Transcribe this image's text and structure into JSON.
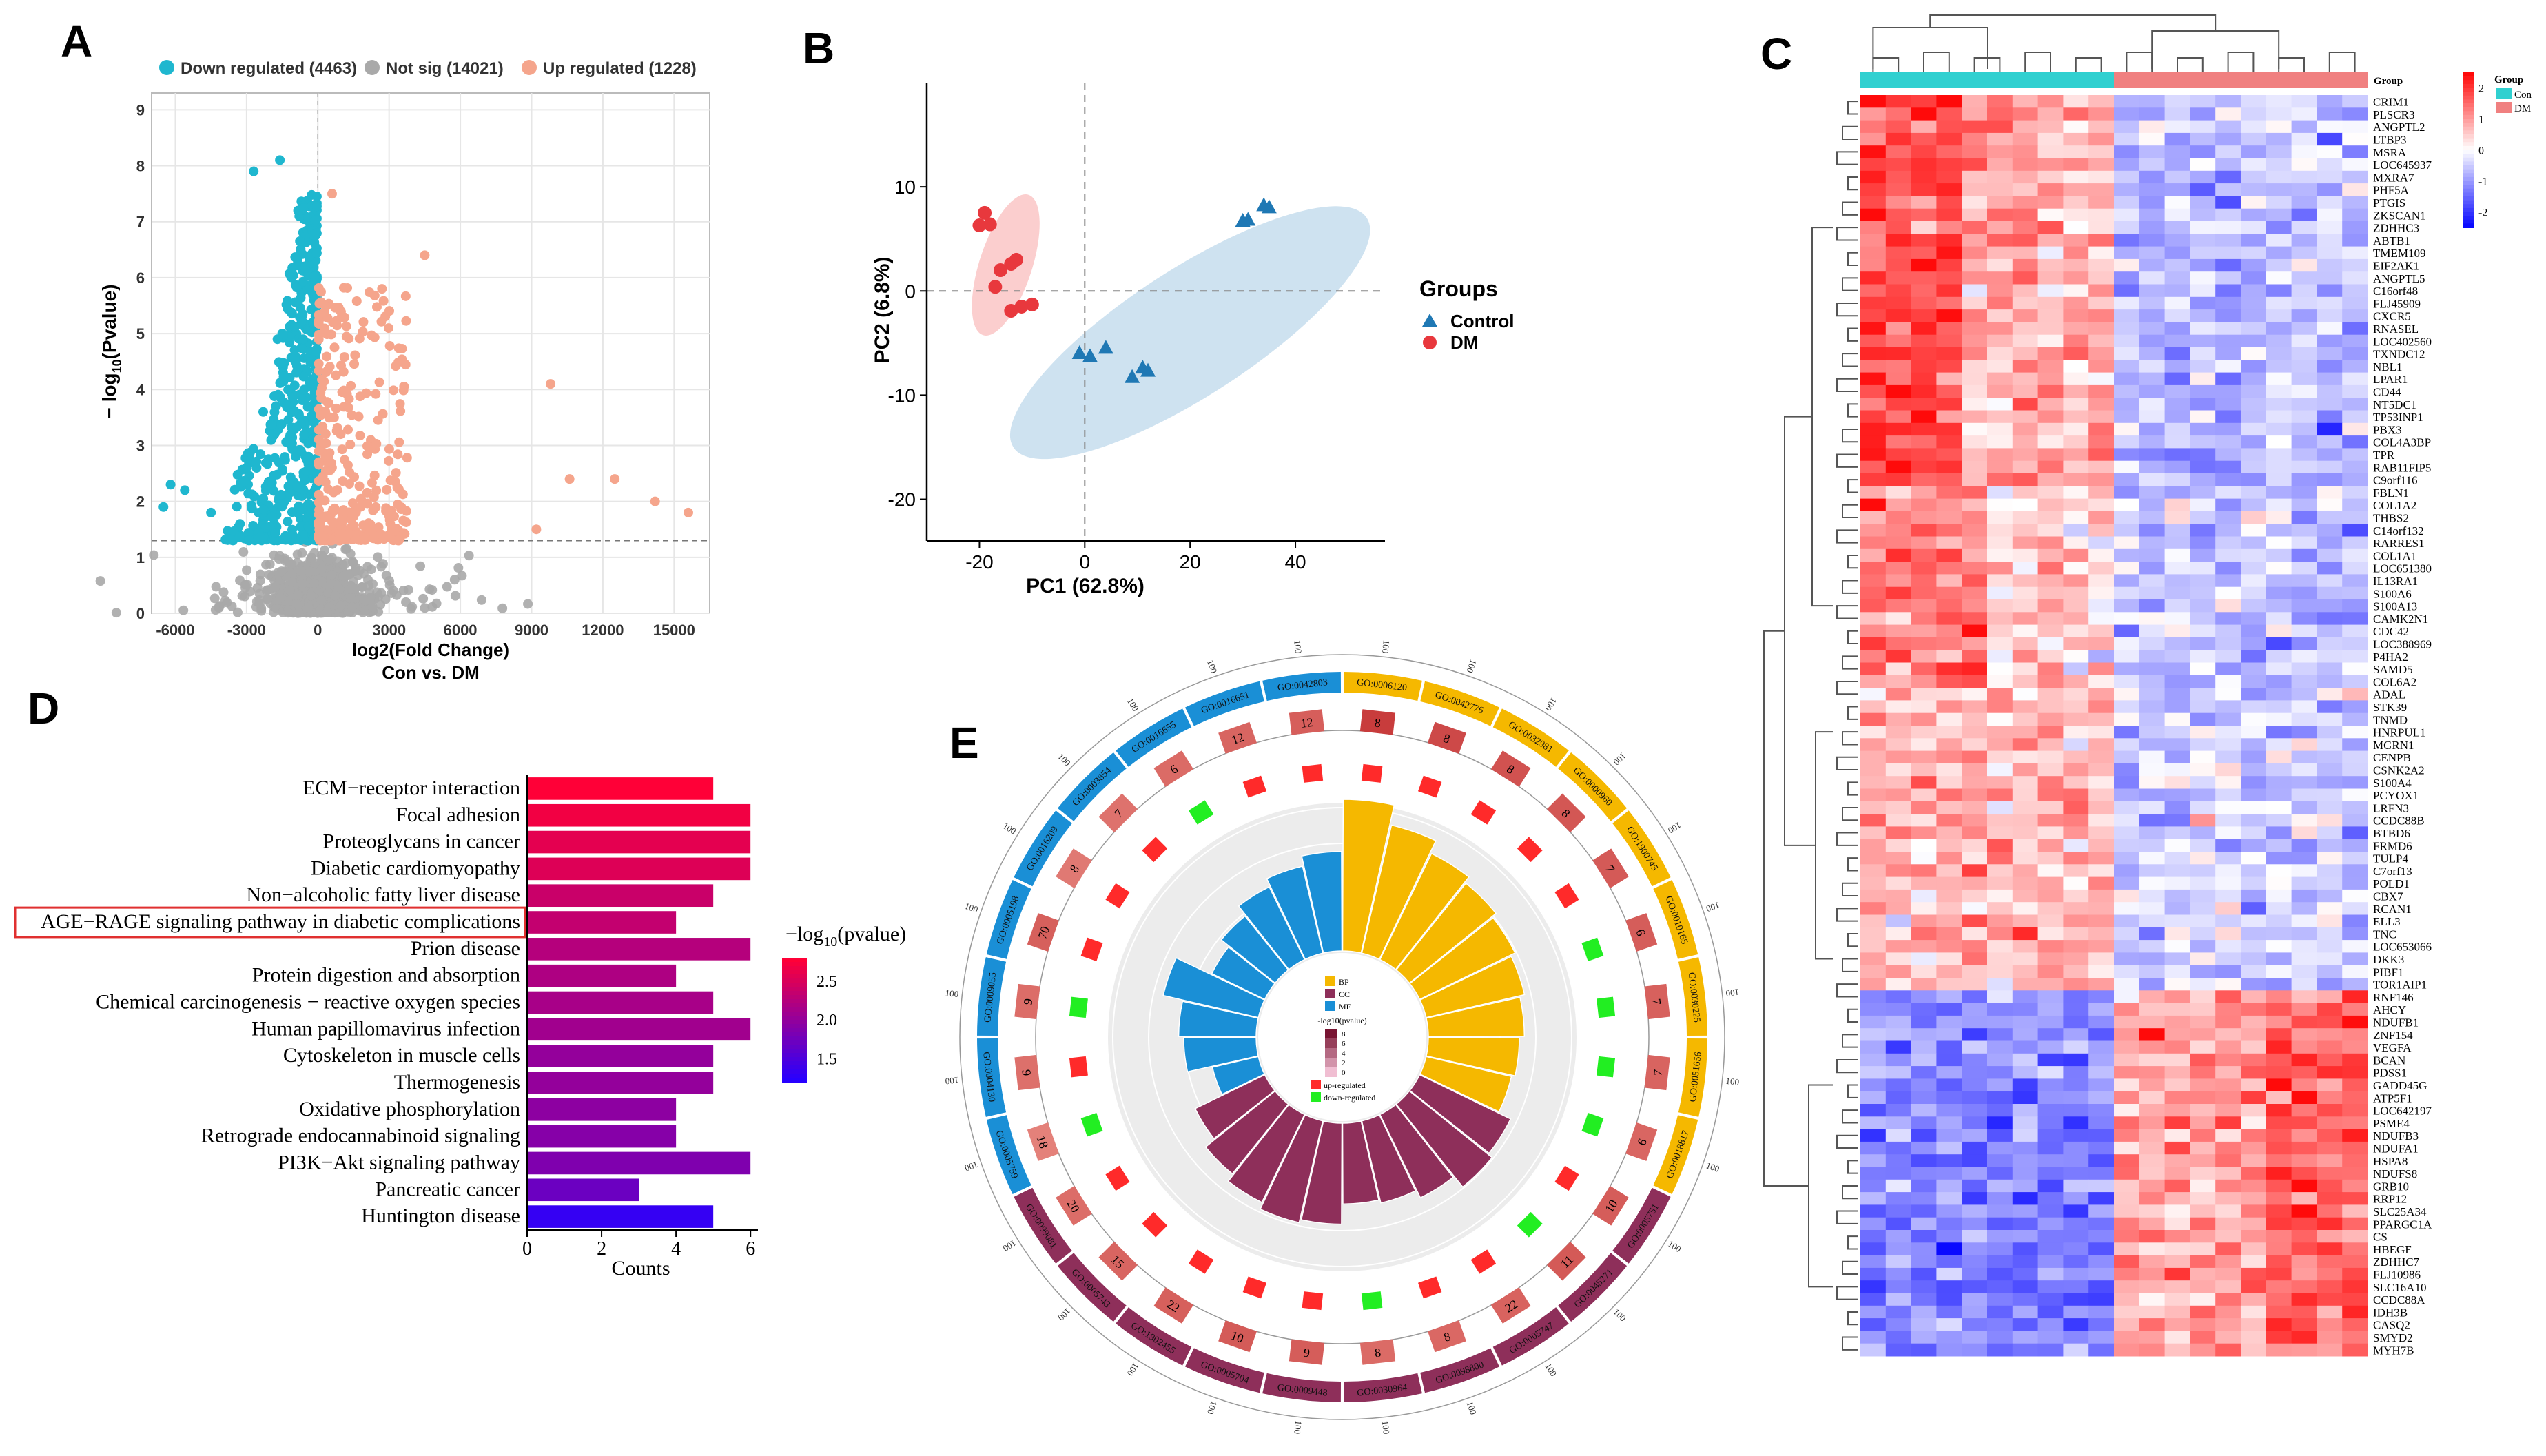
{
  "colors": {
    "down": "#1fb7cf",
    "notsig": "#a9a9a9",
    "up": "#f5a58c",
    "control": "#1f78b4",
    "dm": "#e8383d",
    "control_ellipse": "#a6cbe3",
    "dm_ellipse": "#f7a6a6",
    "bp": "#f5b800",
    "cc": "#8e2f5a",
    "mf": "#1a8fd6",
    "hm_con": "#30d0d0",
    "hm_dm": "#f08080"
  },
  "chart_data": [
    {
      "panel": "A",
      "type": "scatter",
      "title": "",
      "xlabel": "log2(Fold Change)",
      "subtitle": "Con vs. DM",
      "ylabel": "− log10(Pvalue)",
      "xlim": [
        -7000,
        16500
      ],
      "ylim": [
        0,
        9.3
      ],
      "xticks": [
        "-6000",
        "-3000",
        "0",
        "3000",
        "6000",
        "9000",
        "12000",
        "15000"
      ],
      "xtick_values": [
        -6000,
        -3000,
        0,
        3000,
        6000,
        9000,
        12000,
        15000
      ],
      "yticks": [
        "0",
        "1",
        "2",
        "3",
        "4",
        "5",
        "6",
        "7",
        "8",
        "9"
      ],
      "threshold_y": 1.3,
      "legend": [
        {
          "label": "Down regulated (4463)",
          "color": "down"
        },
        {
          "label": "Not sig (14021)",
          "color": "notsig"
        },
        {
          "label": "Up regulated (1228)",
          "color": "up"
        }
      ],
      "highlight_points": {
        "down": [
          [
            -1600,
            8.1
          ],
          [
            -2700,
            7.9
          ],
          [
            -6200,
            2.3
          ],
          [
            -5600,
            2.2
          ],
          [
            -6500,
            1.9
          ],
          [
            -4500,
            1.8
          ],
          [
            -3000,
            2.6
          ],
          [
            -1700,
            4.9
          ],
          [
            -1500,
            5.0
          ],
          [
            -2300,
            3.6
          ]
        ],
        "up": [
          [
            4500,
            6.4
          ],
          [
            9800,
            4.1
          ],
          [
            12500,
            2.4
          ],
          [
            14200,
            2.0
          ],
          [
            15600,
            1.8
          ],
          [
            10600,
            2.4
          ],
          [
            2700,
            5.8
          ],
          [
            600,
            7.5
          ],
          [
            9200,
            1.5
          ]
        ]
      }
    },
    {
      "panel": "B",
      "type": "scatter",
      "xlabel": "PC1 (62.8%)",
      "ylabel": "PC2 (6.8%)",
      "xlim": [
        -30,
        57
      ],
      "ylim": [
        -24,
        20
      ],
      "xticks": [
        "-20",
        "0",
        "20",
        "40"
      ],
      "xtick_values": [
        -20,
        0,
        20,
        40
      ],
      "yticks": [
        "10",
        "0",
        "-10",
        "-20"
      ],
      "ytick_values": [
        10,
        0,
        -10,
        -20
      ],
      "legend_title": "Groups",
      "series": [
        {
          "name": "Control",
          "marker": "triangle",
          "points": [
            [
              30,
              6.7
            ],
            [
              31,
              6.8
            ],
            [
              34,
              8.2
            ],
            [
              35,
              8.0
            ],
            [
              -1,
              -6.0
            ],
            [
              1,
              -6.3
            ],
            [
              4,
              -5.5
            ],
            [
              9,
              -8.3
            ],
            [
              11,
              -7.4
            ],
            [
              12,
              -7.7
            ]
          ]
        },
        {
          "name": "DM",
          "marker": "circle",
          "points": [
            [
              -20,
              6.3
            ],
            [
              -19,
              7.5
            ],
            [
              -18,
              6.4
            ],
            [
              -16,
              2.0
            ],
            [
              -14,
              2.6
            ],
            [
              -17,
              0.4
            ],
            [
              -13,
              3.0
            ],
            [
              -14,
              -1.9
            ],
            [
              -12,
              -1.5
            ],
            [
              -10,
              -1.3
            ]
          ]
        }
      ],
      "ellipses": [
        {
          "group": "Control",
          "cx": 20,
          "cy": -4,
          "rx": 40,
          "ry": 12,
          "angle_deg": 33
        },
        {
          "group": "DM",
          "cx": -15,
          "cy": 2.5,
          "rx": 14,
          "ry": 5,
          "angle_deg": 72
        }
      ]
    },
    {
      "panel": "C",
      "type": "heatmap",
      "legend_title": "Group",
      "legend_groups": [
        "Con",
        "DM"
      ],
      "scale_labels": [
        "2",
        "1",
        "0",
        "-1",
        "-2"
      ],
      "genes": [
        "CRIM1",
        "PLSCR3",
        "ANGPTL2",
        "LTBP3",
        "MSRA",
        "LOC645937",
        "MXRA7",
        "PHF5A",
        "PTGIS",
        "ZKSCAN1",
        "ZDHHC3",
        "ABTB1",
        "TMEM109",
        "EIF2AK1",
        "ANGPTL5",
        "C16orf48",
        "FLJ45909",
        "CXCR5",
        "RNASEL",
        "LOC402560",
        "TXNDC12",
        "NBL1",
        "LPAR1",
        "CD44",
        "NT5DC1",
        "TP53INP1",
        "PBX3",
        "COL4A3BP",
        "TPR",
        "RAB11FIP5",
        "C9orf116",
        "FBLN1",
        "COL1A2",
        "THBS2",
        "C14orf132",
        "RARRES1",
        "COL1A1",
        "LOC651380",
        "IL13RA1",
        "S100A6",
        "S100A13",
        "CAMK2N1",
        "CDC42",
        "LOC388969",
        "P4HA2",
        "SAMD5",
        "COL6A2",
        "ADAL",
        "STK39",
        "TNMD",
        "HNRPUL1",
        "MGRN1",
        "CENPB",
        "CSNK2A2",
        "S100A4",
        "PCYOX1",
        "LRFN3",
        "CCDC88B",
        "BTBD6",
        "FRMD6",
        "TULP4",
        "C7orf13",
        "POLD1",
        "CBX7",
        "RCAN1",
        "ELL3",
        "TNC",
        "LOC653066",
        "DKK3",
        "PIBF1",
        "TOR1AIP1",
        "RNF146",
        "AHCY",
        "NDUFB1",
        "ZNF154",
        "VEGFA",
        "BCAN",
        "PDSS1",
        "GADD45G",
        "ATP5F1",
        "LOC642197",
        "PSME4",
        "NDUFB3",
        "NDUFA1",
        "HSPA8",
        "NDUFS8",
        "GRB10",
        "RRP12",
        "SLC25A34",
        "PPARGC1A",
        "CS",
        "HBEGF",
        "ZDHHC7",
        "FLJ10986",
        "SLC16A10",
        "CCDC88A",
        "IDH3B",
        "CASQ2",
        "SMYD2",
        "MYH7B"
      ],
      "n_con": 10,
      "n_dm": 10
    },
    {
      "panel": "D",
      "type": "bar",
      "orientation": "horizontal",
      "categories": [
        "ECM−receptor interaction",
        "Focal adhesion",
        "Proteoglycans in cancer",
        "Diabetic cardiomyopathy",
        "Non−alcoholic fatty liver disease",
        "AGE−RAGE signaling pathway in diabetic complications",
        "Prion disease",
        "Protein digestion and absorption",
        "Chemical carcinogenesis − reactive oxygen species",
        "Human papillomavirus infection",
        "Cytoskeleton in muscle cells",
        "Thermogenesis",
        "Oxidative phosphorylation",
        "Retrograde endocannabinoid signaling",
        "PI3K−Akt signaling pathway",
        "Pancreatic cancer",
        "Huntington disease"
      ],
      "values": [
        5,
        6,
        6,
        6,
        5,
        4,
        6,
        4,
        5,
        6,
        5,
        5,
        4,
        4,
        6,
        3,
        5
      ],
      "neglog10p": [
        2.8,
        2.7,
        2.6,
        2.55,
        2.4,
        2.35,
        2.25,
        2.2,
        2.15,
        2.1,
        2.0,
        2.0,
        1.95,
        1.9,
        1.85,
        1.7,
        1.3
      ],
      "highlight_index": 5,
      "xlabel": "Counts",
      "xlim": [
        0,
        6.5
      ],
      "xticks": [
        "0",
        "2",
        "4",
        "6"
      ],
      "legend_title": "−log10(pvalue)",
      "legend_ticks": [
        "2.5",
        "2.0",
        "1.5"
      ]
    },
    {
      "panel": "E",
      "type": "circular",
      "legend": {
        "bp": "BP",
        "cc": "CC",
        "mf": "MF",
        "scale_title": "-log10(pvalue)",
        "scale_ticks": [
          "8",
          "6",
          "4",
          "2",
          "0"
        ],
        "up": "up-regulated",
        "down": "down-regulated"
      },
      "terms": [
        {
          "id": "GO:0006120",
          "cat": "BP",
          "count": 8,
          "up": 1,
          "score": 9.0
        },
        {
          "id": "GO:0042776",
          "cat": "BP",
          "count": 8,
          "up": 1,
          "score": 7.8
        },
        {
          "id": "GO:0032981",
          "cat": "BP",
          "count": 8,
          "up": 1,
          "score": 7.0
        },
        {
          "id": "GO:0000960",
          "cat": "BP",
          "count": 8,
          "up": 1,
          "score": 6.6
        },
        {
          "id": "GO:1900745",
          "cat": "BP",
          "count": 7,
          "up": 1,
          "score": 6.3
        },
        {
          "id": "GO:0010165",
          "cat": "BP",
          "count": 6,
          "up": 0,
          "score": 6.0
        },
        {
          "id": "GO:0030225",
          "cat": "BP",
          "count": 7,
          "up": 0,
          "score": 5.7
        },
        {
          "id": "GO:0051656",
          "cat": "BP",
          "count": 7,
          "up": 0,
          "score": 5.4
        },
        {
          "id": "GO:0018817",
          "cat": "BP",
          "count": 6,
          "up": 0,
          "score": 5.2
        },
        {
          "id": "GO:0005751",
          "cat": "CC",
          "count": 10,
          "up": 1,
          "score": 6.0
        },
        {
          "id": "GO:0045271",
          "cat": "CC",
          "count": 11,
          "up": 0,
          "score": 6.3
        },
        {
          "id": "GO:0005747",
          "cat": "CC",
          "count": 22,
          "up": 1,
          "score": 5.5
        },
        {
          "id": "GO:0098800",
          "cat": "CC",
          "count": 8,
          "up": 1,
          "score": 5.0
        },
        {
          "id": "GO:0030964",
          "cat": "CC",
          "count": 8,
          "up": 0,
          "score": 4.8
        },
        {
          "id": "GO:0009448",
          "cat": "CC",
          "count": 9,
          "up": 1,
          "score": 6.0
        },
        {
          "id": "GO:0005704",
          "cat": "CC",
          "count": 10,
          "up": 1,
          "score": 6.2
        },
        {
          "id": "GO:1902455",
          "cat": "CC",
          "count": 22,
          "up": 1,
          "score": 5.8
        },
        {
          "id": "GO:0005743",
          "cat": "CC",
          "count": 15,
          "up": 1,
          "score": 5.3
        },
        {
          "id": "GO:0099081",
          "cat": "CC",
          "count": 20,
          "up": 1,
          "score": 4.6
        },
        {
          "id": "GO:0005759",
          "cat": "MF",
          "count": 18,
          "up": 0,
          "score": 2.8
        },
        {
          "id": "GO:0004130",
          "cat": "MF",
          "count": 9,
          "up": 1,
          "score": 4.3
        },
        {
          "id": "GO:0009055",
          "cat": "MF",
          "count": 9,
          "up": 0,
          "score": 4.6
        },
        {
          "id": "GO:0005198",
          "cat": "MF",
          "count": 70,
          "up": 1,
          "score": 5.8
        },
        {
          "id": "GO:0016209",
          "cat": "MF",
          "count": 8,
          "up": 1,
          "score": 3.5
        },
        {
          "id": "GO:0003854",
          "cat": "MF",
          "count": 7,
          "up": 1,
          "score": 4.1
        },
        {
          "id": "GO:0016655",
          "cat": "MF",
          "count": 6,
          "up": 0,
          "score": 4.8
        },
        {
          "id": "GO:0016651",
          "cat": "MF",
          "count": 12,
          "up": 1,
          "score": 5.3
        },
        {
          "id": "GO:0042803",
          "cat": "MF",
          "count": 12,
          "up": 1,
          "score": 5.9
        }
      ]
    }
  ],
  "panel_labels": {
    "a": "A",
    "b": "B",
    "c": "C",
    "d": "D",
    "e": "E"
  },
  "text": {
    "a_legend_down": "Down regulated (4463)",
    "a_legend_notsig": "Not sig (14021)",
    "a_legend_up": "Up regulated (1228)",
    "a_xlabel": "log2(Fold Change)",
    "a_subtitle": "Con vs. DM",
    "a_ylabel": "− log",
    "a_ylabel_sub": "10",
    "a_ylabel_end": "(Pvalue)",
    "b_xlabel": "PC1 (62.8%)",
    "b_ylabel": "PC2 (6.8%)",
    "b_legend_title": "Groups",
    "b_legend_control": "Control",
    "b_legend_dm": "DM",
    "c_group_label": "Group",
    "c_legend_title": "Group",
    "c_legend_con": "Con",
    "c_legend_dm": "DM",
    "d_xlabel": "Counts",
    "d_legend_title": "−log",
    "d_legend_sub": "10",
    "d_legend_end": "(pvalue)",
    "e_legend_bp": "BP",
    "e_legend_cc": "CC",
    "e_legend_mf": "MF",
    "e_legend_scale": "-log10(pvalue)",
    "e_legend_up": "up-regulated",
    "e_legend_down": "down-regulated"
  }
}
